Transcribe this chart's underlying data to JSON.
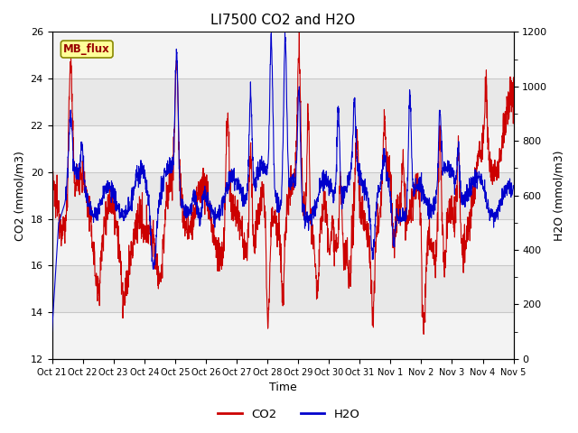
{
  "title": "LI7500 CO2 and H2O",
  "xlabel": "Time",
  "ylabel_left": "CO2 (mmol/m3)",
  "ylabel_right": "H2O (mmol/m3)",
  "ylim_left": [
    12,
    26
  ],
  "ylim_right": [
    0,
    1200
  ],
  "yticks_left": [
    12,
    14,
    16,
    18,
    20,
    22,
    24,
    26
  ],
  "yticks_right": [
    0,
    200,
    400,
    600,
    800,
    1000,
    1200
  ],
  "yticks_right_minor": [
    100,
    300,
    500,
    700,
    900,
    1100
  ],
  "xtick_labels": [
    "Oct 21",
    "Oct 22",
    "Oct 23",
    "Oct 24",
    "Oct 25",
    "Oct 26",
    "Oct 27",
    "Oct 28",
    "Oct 29",
    "Oct 30",
    "Oct 31",
    "Nov 1",
    "Nov 2",
    "Nov 3",
    "Nov 4",
    "Nov 5"
  ],
  "co2_color": "#cc0000",
  "h2o_color": "#0000cc",
  "plot_bg_color": "#e8e8e8",
  "band_color_light": "#f0f0f0",
  "band_color_dark": "#e0e0e0",
  "grid_color": "#d0d0d0",
  "mb_flux_text": "MB_flux",
  "mb_flux_bg": "#ffff99",
  "mb_flux_border": "#888800",
  "mb_flux_text_color": "#990000",
  "legend_co2": "CO2",
  "legend_h2o": "H2O",
  "n_points": 2000,
  "title_fontsize": 11,
  "axis_label_fontsize": 9,
  "tick_fontsize": 8,
  "linewidth": 0.8
}
